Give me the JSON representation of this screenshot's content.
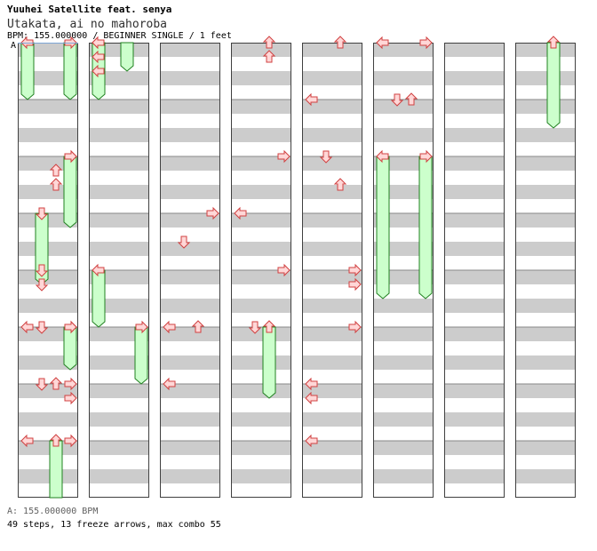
{
  "header": {
    "artist": "Yuuhei Satellite feat. senya",
    "title": "Utakata, ai no mahoroba",
    "info": "BPM: 155.000000 / BEGINNER SINGLE / 1 feet"
  },
  "bpm_marker": {
    "label": "A"
  },
  "footer": {
    "bpm_change": "A: 155.000000 BPM",
    "stats": "49 steps, 13 freeze arrows, max combo 55"
  },
  "colors": {
    "stripe": "#cccccc",
    "measure_line": "#888888",
    "column_border": "#404040",
    "arrow_fill": "#ffd7d7",
    "arrow_stroke": "#d04040",
    "freeze_fill": "#ccffcc",
    "freeze_stroke": "#208020"
  },
  "chart_data": {
    "type": "step-chart",
    "style": "BEGINNER SINGLE",
    "bpm": 155.0,
    "columns": 8,
    "measures_per_column": 8,
    "beats_per_measure": 4,
    "lanes": [
      "left",
      "down",
      "up",
      "right"
    ],
    "arrows": [
      {
        "measure": 7,
        "beat": 0,
        "lane": 0
      },
      {
        "measure": 7,
        "beat": 0,
        "lane": 3
      },
      {
        "measure": 6,
        "beat": 0,
        "lane": 1
      },
      {
        "measure": 6,
        "beat": 0,
        "lane": 2
      },
      {
        "measure": 5,
        "beat": 0,
        "lane": 0
      },
      {
        "measure": 5,
        "beat": 0,
        "lane": 3
      },
      {
        "measure": 2,
        "beat": 0,
        "lane": 3
      },
      {
        "measure": 2,
        "beat": 1,
        "lane": 2
      },
      {
        "measure": 2,
        "beat": 2,
        "lane": 2
      },
      {
        "measure": 4,
        "beat": 0,
        "lane": 1
      },
      {
        "measure": 4,
        "beat": 1,
        "lane": 1
      },
      {
        "measure": 5,
        "beat": 0,
        "lane": 1
      },
      {
        "measure": 6,
        "beat": 0,
        "lane": 3
      },
      {
        "measure": 6,
        "beat": 1,
        "lane": 3
      },
      {
        "measure": 7,
        "beat": 0,
        "lane": 3
      },
      {
        "measure": 8,
        "beat": 0,
        "lane": 0
      },
      {
        "measure": 8,
        "beat": 1,
        "lane": 0
      },
      {
        "measure": 8,
        "beat": 2,
        "lane": 0
      },
      {
        "measure": 19,
        "beat": 0,
        "lane": 3
      },
      {
        "measure": 19,
        "beat": 2,
        "lane": 1
      },
      {
        "measure": 21,
        "beat": 0,
        "lane": 2
      },
      {
        "measure": 21,
        "beat": 0,
        "lane": 0
      },
      {
        "measure": 22,
        "beat": 0,
        "lane": 0
      },
      {
        "measure": 24,
        "beat": 0,
        "lane": 2
      },
      {
        "measure": 24,
        "beat": 1,
        "lane": 2
      },
      {
        "measure": 26,
        "beat": 0,
        "lane": 3
      },
      {
        "measure": 27,
        "beat": 0,
        "lane": 0
      },
      {
        "measure": 28,
        "beat": 0,
        "lane": 3
      },
      {
        "measure": 29,
        "beat": 0,
        "lane": 1
      },
      {
        "measure": 32,
        "beat": 0,
        "lane": 2
      },
      {
        "measure": 33,
        "beat": 0,
        "lane": 0
      },
      {
        "measure": 34,
        "beat": 0,
        "lane": 1
      },
      {
        "measure": 34,
        "beat": 2,
        "lane": 2
      },
      {
        "measure": 36,
        "beat": 0,
        "lane": 3
      },
      {
        "measure": 36,
        "beat": 1,
        "lane": 3
      },
      {
        "measure": 37,
        "beat": 0,
        "lane": 3
      },
      {
        "measure": 38,
        "beat": 0,
        "lane": 0
      },
      {
        "measure": 38,
        "beat": 1,
        "lane": 0
      },
      {
        "measure": 39,
        "beat": 0,
        "lane": 0
      },
      {
        "measure": 40,
        "beat": 0,
        "lane": 0
      },
      {
        "measure": 40,
        "beat": 0,
        "lane": 3
      },
      {
        "measure": 41,
        "beat": 0,
        "lane": 1
      },
      {
        "measure": 41,
        "beat": 0,
        "lane": 2
      }
    ],
    "freezes": [
      {
        "start_measure": 0,
        "start_beat": 0,
        "end_measure": 1,
        "end_beat": 0,
        "lane": 0
      },
      {
        "start_measure": 0,
        "start_beat": 0,
        "end_measure": 1,
        "end_beat": 0,
        "lane": 3
      },
      {
        "start_measure": 2,
        "start_beat": 0,
        "end_measure": 3,
        "end_beat": 1,
        "lane": 3
      },
      {
        "start_measure": 3,
        "start_beat": 0,
        "end_measure": 4,
        "end_beat": 1,
        "lane": 1
      },
      {
        "start_measure": 5,
        "start_beat": 0,
        "end_measure": 5,
        "end_beat": 3,
        "lane": 3
      },
      {
        "start_measure": 7,
        "start_beat": 0,
        "end_measure": 8,
        "end_beat": 2,
        "lane": 2
      },
      {
        "start_measure": 8,
        "start_beat": 0,
        "end_measure": 8,
        "end_beat": 4,
        "lane": 0
      },
      {
        "start_measure": 12,
        "start_beat": 0,
        "end_measure": 12,
        "end_beat": 4,
        "lane": 0
      },
      {
        "start_measure": 13,
        "start_beat": 0,
        "end_measure": 13,
        "end_beat": 4,
        "lane": 3
      },
      {
        "start_measure": 29,
        "start_beat": 0,
        "end_measure": 30,
        "end_beat": 1,
        "lane": 2
      },
      {
        "start_measure": 42,
        "start_beat": 0,
        "end_measure": 44,
        "end_beat": 2,
        "lane": 0
      },
      {
        "start_measure": 42,
        "start_beat": 0,
        "end_measure": 44,
        "end_beat": 2,
        "lane": 3
      },
      {
        "start_measure": 56,
        "start_beat": 0,
        "end_measure": 57,
        "end_beat": 2,
        "lane": 2
      }
    ]
  }
}
